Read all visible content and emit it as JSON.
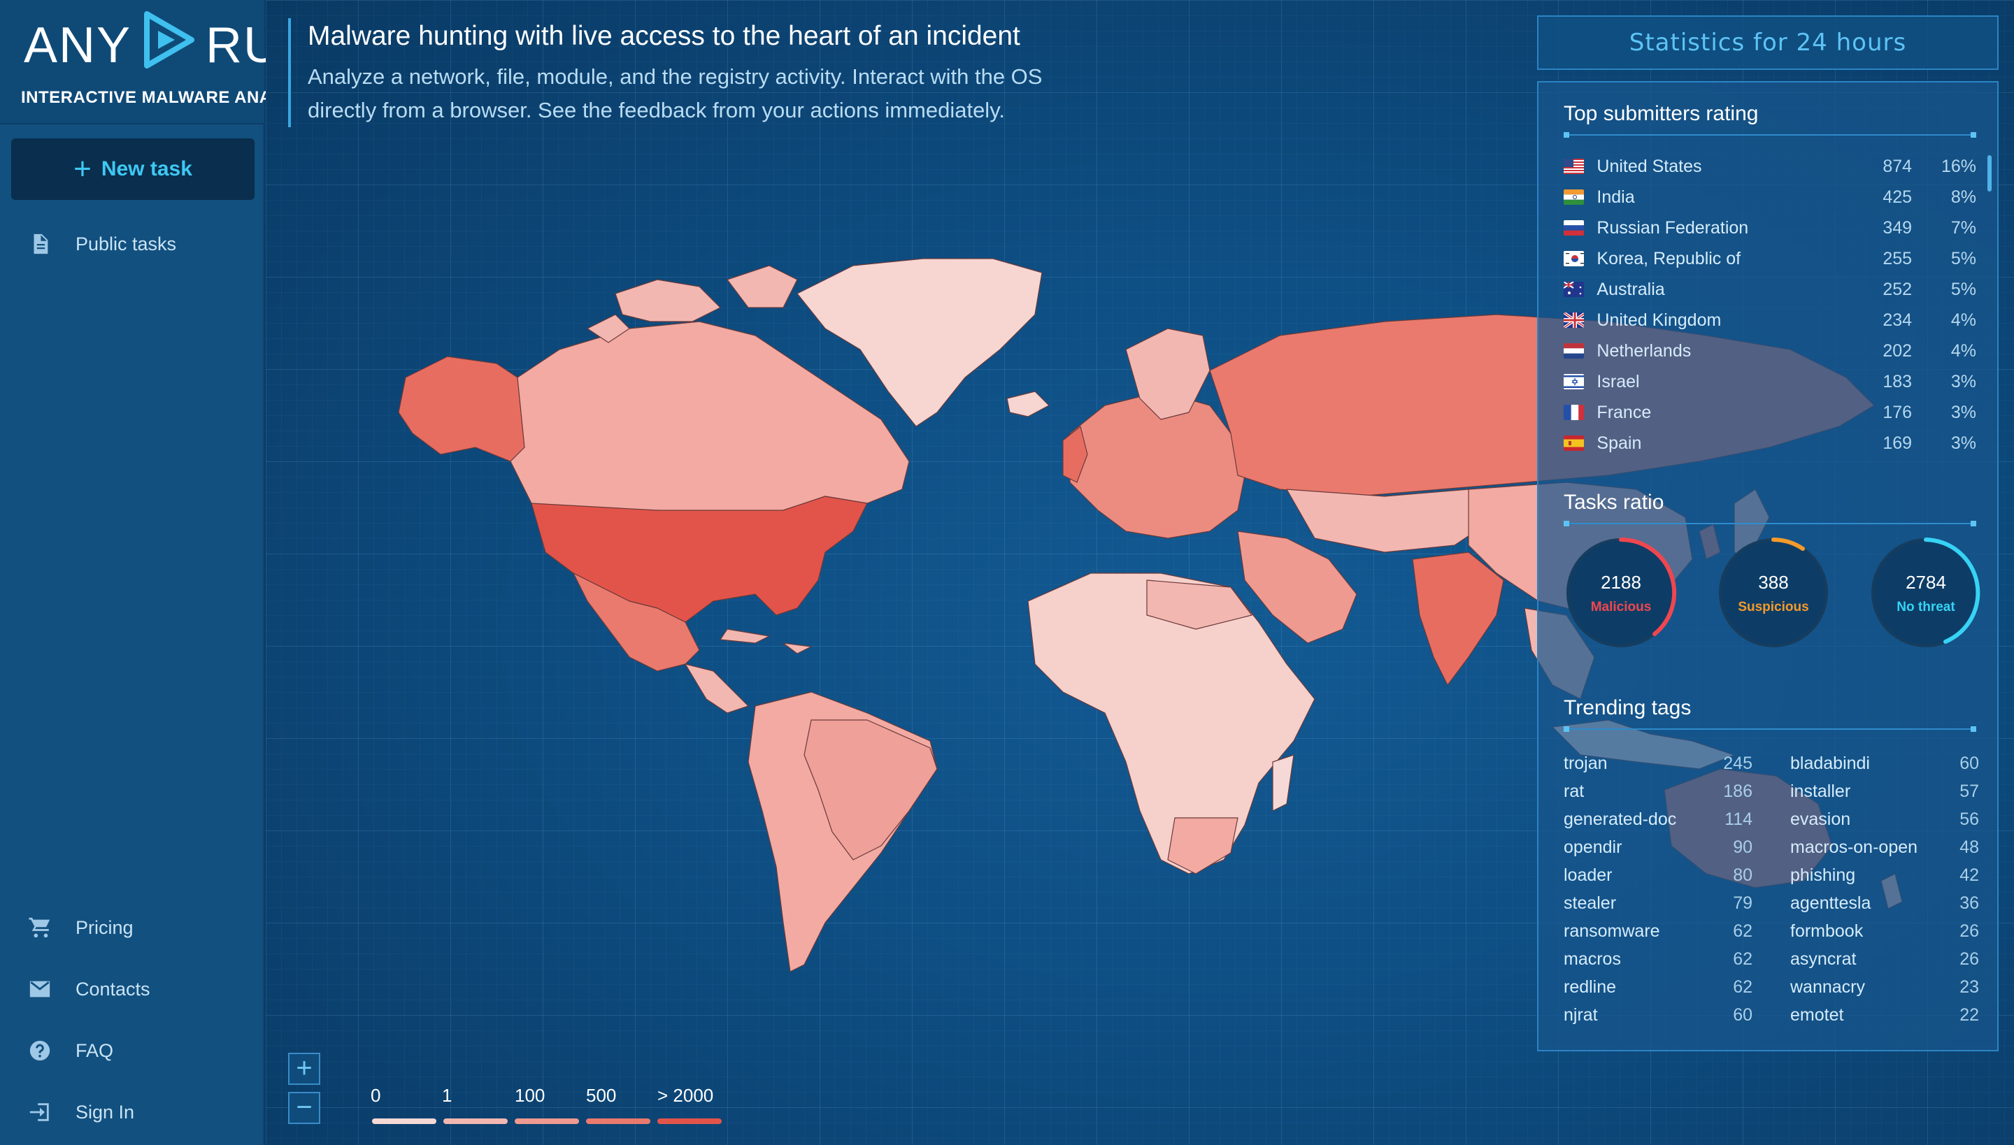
{
  "logo": {
    "left": "ANY",
    "right": "RUN",
    "subtitle": "INTERACTIVE MALWARE ANALYSIS"
  },
  "sidebar": {
    "new_task": "New task",
    "public_tasks": "Public tasks",
    "pricing": "Pricing",
    "contacts": "Contacts",
    "faq": "FAQ",
    "sign_in": "Sign In"
  },
  "headline": {
    "title": "Malware hunting with live access to the heart of an incident",
    "description": "Analyze a network, file, module, and the registry activity. Interact with the OS directly from a browser. See the feedback from your actions immediately."
  },
  "map_controls": {
    "zoom_in": "+",
    "zoom_out": "−"
  },
  "legend": [
    {
      "label": "0",
      "color": "#f6d9d6"
    },
    {
      "label": "1",
      "color": "#f3b7b1"
    },
    {
      "label": "100",
      "color": "#ef9a90"
    },
    {
      "label": "500",
      "color": "#ea7a6e"
    },
    {
      "label": "> 2000",
      "color": "#e2544a"
    }
  ],
  "stats": {
    "header": "Statistics for 24 hours",
    "submitters_title": "Top submitters rating",
    "submitters": [
      {
        "country": "United States",
        "count": "874",
        "pct": "16%",
        "flag": "us-flag"
      },
      {
        "country": "India",
        "count": "425",
        "pct": "8%",
        "flag": "in-flag"
      },
      {
        "country": "Russian Federation",
        "count": "349",
        "pct": "7%",
        "flag": "ru-flag"
      },
      {
        "country": "Korea, Republic of",
        "count": "255",
        "pct": "5%",
        "flag": "kr-flag"
      },
      {
        "country": "Australia",
        "count": "252",
        "pct": "5%",
        "flag": "au-flag"
      },
      {
        "country": "United Kingdom",
        "count": "234",
        "pct": "4%",
        "flag": "gb-flag"
      },
      {
        "country": "Netherlands",
        "count": "202",
        "pct": "4%",
        "flag": "nl-flag"
      },
      {
        "country": "Israel",
        "count": "183",
        "pct": "3%",
        "flag": "il-flag"
      },
      {
        "country": "France",
        "count": "176",
        "pct": "3%",
        "flag": "fr-flag"
      },
      {
        "country": "Spain",
        "count": "169",
        "pct": "3%",
        "flag": "es-flag"
      }
    ],
    "tasks_title": "Tasks ratio",
    "tasks": [
      {
        "value": "2188",
        "label": "Malicious",
        "color": "#f0464f"
      },
      {
        "value": "388",
        "label": "Suspicious",
        "color": "#f59a2b"
      },
      {
        "value": "2784",
        "label": "No threat",
        "color": "#36d3f5"
      }
    ],
    "tags_title": "Trending tags",
    "tags_left": [
      {
        "name": "trojan",
        "count": "245"
      },
      {
        "name": "rat",
        "count": "186"
      },
      {
        "name": "generated-doc",
        "count": "114"
      },
      {
        "name": "opendir",
        "count": "90"
      },
      {
        "name": "loader",
        "count": "80"
      },
      {
        "name": "stealer",
        "count": "79"
      },
      {
        "name": "ransomware",
        "count": "62"
      },
      {
        "name": "macros",
        "count": "62"
      },
      {
        "name": "redline",
        "count": "62"
      },
      {
        "name": "njrat",
        "count": "60"
      }
    ],
    "tags_right": [
      {
        "name": "bladabindi",
        "count": "60"
      },
      {
        "name": "installer",
        "count": "57"
      },
      {
        "name": "evasion",
        "count": "56"
      },
      {
        "name": "macros-on-open",
        "count": "48"
      },
      {
        "name": "phishing",
        "count": "42"
      },
      {
        "name": "agenttesla",
        "count": "36"
      },
      {
        "name": "formbook",
        "count": "26"
      },
      {
        "name": "asyncrat",
        "count": "26"
      },
      {
        "name": "wannacry",
        "count": "23"
      },
      {
        "name": "emotet",
        "count": "22"
      }
    ]
  }
}
